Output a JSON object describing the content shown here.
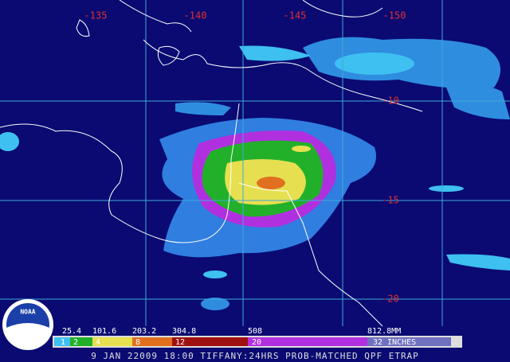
{
  "logo": "NOAA",
  "longitude_labels": [
    "-135",
    "-140",
    "-145",
    "-150"
  ],
  "latitude_labels": [
    "-10",
    "-15",
    "-20"
  ],
  "legend": {
    "mm_labels": [
      "25.4",
      "101.6",
      "203.2",
      "304.8",
      "508",
      "812.8MM"
    ],
    "inch_labels": [
      "1",
      "2",
      "4",
      "8",
      "12",
      "20",
      "32"
    ],
    "unit": "INCHES"
  },
  "caption": "9 JAN 22009 18:00 TIFFANY:24HRS PROB-MATCHED QPF ETRAP"
}
